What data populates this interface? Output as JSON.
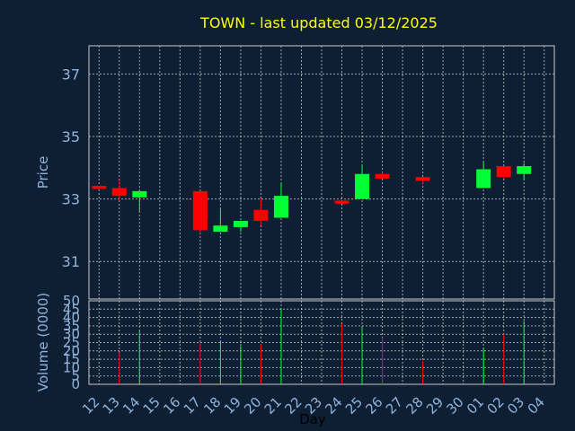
{
  "chart_data": [
    {
      "type": "candlestick",
      "title": "TOWN - last updated 03/12/2025",
      "ylabel": "Price",
      "ylim": [
        29.8,
        37.9
      ],
      "yticks": [
        31,
        33,
        35,
        37
      ],
      "x_categories": [
        "12",
        "13",
        "14",
        "15",
        "16",
        "17",
        "18",
        "19",
        "20",
        "21",
        "22",
        "23",
        "24",
        "25",
        "26",
        "27",
        "28",
        "29",
        "30",
        "01",
        "02",
        "03",
        "04"
      ],
      "candles": [
        {
          "x": "12",
          "open": 33.42,
          "high": 33.42,
          "low": 33.32,
          "close": 33.32
        },
        {
          "x": "13",
          "open": 33.35,
          "high": 33.6,
          "low": 32.95,
          "close": 33.1
        },
        {
          "x": "14",
          "open": 33.05,
          "high": 33.25,
          "low": 32.6,
          "close": 33.25
        },
        {
          "x": "17",
          "open": 33.25,
          "high": 33.25,
          "low": 31.9,
          "close": 32.0
        },
        {
          "x": "18",
          "open": 31.95,
          "high": 32.7,
          "low": 31.95,
          "close": 32.15
        },
        {
          "x": "19",
          "open": 32.1,
          "high": 32.3,
          "low": 31.95,
          "close": 32.3
        },
        {
          "x": "20",
          "open": 32.65,
          "high": 33.0,
          "low": 32.15,
          "close": 32.3
        },
        {
          "x": "21",
          "open": 32.4,
          "high": 33.5,
          "low": 32.4,
          "close": 33.1
        },
        {
          "x": "24",
          "open": 32.95,
          "high": 32.95,
          "low": 32.85,
          "close": 32.85
        },
        {
          "x": "25",
          "open": 33.0,
          "high": 34.1,
          "low": 33.0,
          "close": 33.8
        },
        {
          "x": "26",
          "open": 33.8,
          "high": 33.85,
          "low": 33.65,
          "close": 33.65
        },
        {
          "x": "28",
          "open": 33.7,
          "high": 33.7,
          "low": 33.5,
          "close": 33.58
        },
        {
          "x": "01",
          "open": 33.35,
          "high": 34.2,
          "low": 33.35,
          "close": 33.95
        },
        {
          "x": "02",
          "open": 34.05,
          "high": 34.05,
          "low": 33.65,
          "close": 33.7
        },
        {
          "x": "03",
          "open": 33.8,
          "high": 34.15,
          "low": 33.6,
          "close": 34.05
        }
      ]
    },
    {
      "type": "bar",
      "ylabel": "Volume (0000)",
      "xlabel": "Day",
      "ylim": [
        0,
        50
      ],
      "yticks": [
        0,
        5,
        10,
        15,
        20,
        25,
        30,
        35,
        40,
        45,
        50
      ],
      "x_categories": [
        "12",
        "13",
        "14",
        "15",
        "16",
        "17",
        "18",
        "19",
        "20",
        "21",
        "22",
        "23",
        "24",
        "25",
        "26",
        "27",
        "28",
        "29",
        "30",
        "01",
        "02",
        "03",
        "04"
      ],
      "bars": [
        {
          "x": "13",
          "value": 19,
          "direction": "down"
        },
        {
          "x": "14",
          "value": 32,
          "direction": "up"
        },
        {
          "x": "17",
          "value": 25,
          "direction": "down"
        },
        {
          "x": "18",
          "value": 26,
          "direction": "up"
        },
        {
          "x": "19",
          "value": 23,
          "direction": "up"
        },
        {
          "x": "20",
          "value": 24,
          "direction": "down"
        },
        {
          "x": "21",
          "value": 45,
          "direction": "up"
        },
        {
          "x": "24",
          "value": 36,
          "direction": "down"
        },
        {
          "x": "25",
          "value": 34,
          "direction": "up"
        },
        {
          "x": "26",
          "value": 28,
          "direction": "down"
        },
        {
          "x": "28",
          "value": 14,
          "direction": "down"
        },
        {
          "x": "01",
          "value": 22,
          "direction": "up"
        },
        {
          "x": "02",
          "value": 30,
          "direction": "down"
        },
        {
          "x": "03",
          "value": 38,
          "direction": "up"
        }
      ]
    }
  ],
  "colors": {
    "background": "#0e1e33",
    "plot_border": "#c8c8c8",
    "grid": "#c8c8c8",
    "up": "#00ff33",
    "down": "#ff0000",
    "title": "#ffff00",
    "tick": "#8fb4dc",
    "xlabel": "#000000"
  }
}
